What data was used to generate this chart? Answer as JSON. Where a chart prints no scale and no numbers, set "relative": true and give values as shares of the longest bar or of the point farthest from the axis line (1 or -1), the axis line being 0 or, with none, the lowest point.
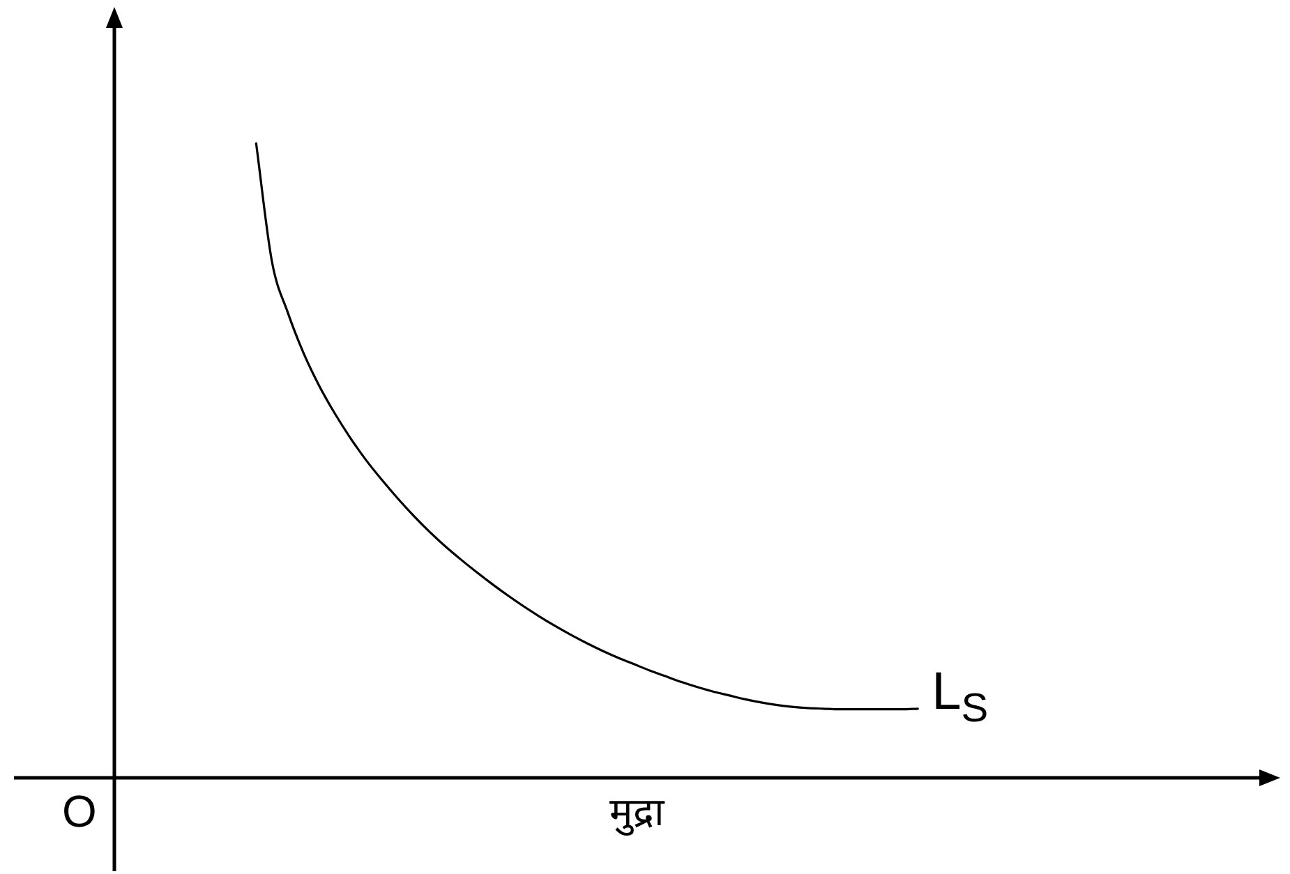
{
  "chart_data": {
    "type": "line",
    "relative": true,
    "xlabel": "मुद्रा",
    "annotations": [
      "O"
    ],
    "categories": [
      null,
      null,
      null,
      null,
      null,
      null,
      null,
      null,
      null,
      null,
      null,
      null,
      null,
      null,
      null,
      null,
      null,
      null,
      null,
      null,
      null,
      null,
      null,
      null,
      null,
      null,
      null,
      null,
      null,
      null,
      null,
      null,
      null,
      null,
      null,
      null,
      null,
      null,
      null,
      null,
      null,
      null,
      null,
      null,
      null,
      null,
      null,
      null,
      null,
      null,
      null,
      null,
      null,
      null,
      null,
      null,
      null,
      null,
      null,
      null,
      null,
      null,
      null,
      null,
      null,
      null,
      null,
      null,
      null,
      null,
      null,
      null,
      null
    ],
    "series": [
      {
        "name": "L$_{S}$",
        "color": "#000000",
        "values": [
          null,
          null,
          null,
          null,
          null,
          null,
          null,
          null,
          1,
          0.814,
          0.734,
          0.67,
          0.618,
          0.574,
          0.535,
          0.5,
          0.469,
          0.44,
          0.413,
          0.388,
          0.365,
          0.344,
          0.324,
          0.305,
          0.287,
          0.27,
          0.254,
          0.239,
          0.225,
          0.212,
          0.2,
          0.189,
          0.179,
          0.169,
          0.16,
          0.151,
          0.143,
          0.136,
          0.13,
          0.124,
          0.119,
          0.115,
          0.112,
          0.11,
          0.109,
          0.108,
          0.108,
          0.108,
          0.108,
          0.108,
          0.109,
          null,
          null,
          null,
          null,
          null,
          null,
          null,
          null,
          null,
          null,
          null,
          null,
          null,
          null,
          null,
          null,
          null,
          null,
          null,
          null,
          null,
          null
        ]
      }
    ]
  }
}
